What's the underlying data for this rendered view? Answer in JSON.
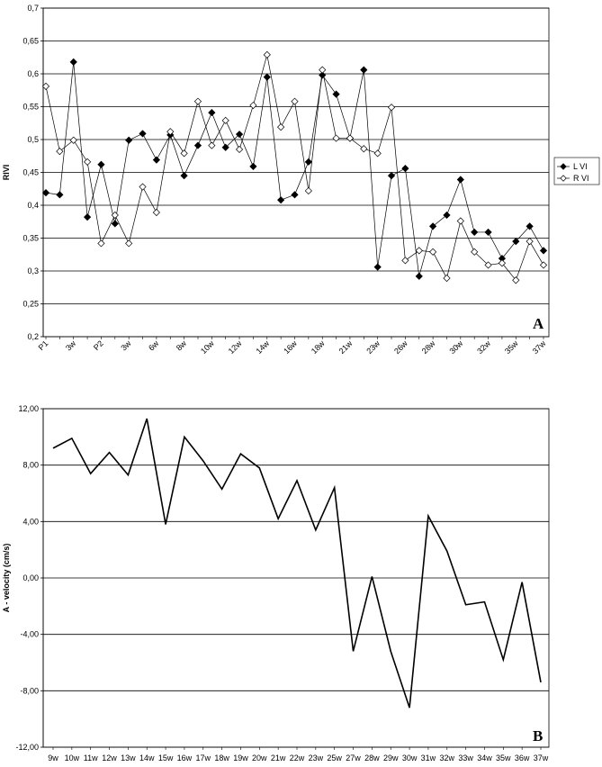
{
  "chart_data": [
    {
      "type": "line",
      "panel_label": "A",
      "ylabel": "RIVI",
      "ylim": [
        0.2,
        0.7
      ],
      "yticks": [
        "0,2",
        "0,25",
        "0,3",
        "0,35",
        "0,4",
        "0,45",
        "0,5",
        "0,55",
        "0,6",
        "0,65",
        "0,7"
      ],
      "grid": true,
      "legend_position": "right",
      "x_tick_labels": [
        "P1",
        "3w",
        "P2",
        "3w",
        "6w",
        "8w",
        "10w",
        "12w",
        "14w",
        "16w",
        "18w",
        "21w",
        "23w",
        "26w",
        "28w",
        "30w",
        "32w",
        "35w",
        "37w"
      ],
      "series": [
        {
          "name": "L VI",
          "marker": "filled-diamond",
          "values": [
            0.419,
            0.416,
            0.618,
            0.382,
            0.462,
            0.372,
            0.499,
            0.509,
            0.469,
            0.507,
            0.445,
            0.491,
            0.541,
            0.488,
            0.508,
            0.459,
            0.595,
            0.408,
            0.416,
            0.466,
            0.598,
            0.569,
            0.502,
            0.606,
            0.306,
            0.445,
            0.456,
            0.292,
            0.368,
            0.385,
            0.439,
            0.359,
            0.359,
            0.319,
            0.345,
            0.368,
            0.331
          ]
        },
        {
          "name": "R VI",
          "marker": "open-diamond",
          "values": [
            0.581,
            0.482,
            0.499,
            0.466,
            0.342,
            0.385,
            0.342,
            0.428,
            0.389,
            0.512,
            0.479,
            0.558,
            0.491,
            0.529,
            0.485,
            0.552,
            0.629,
            0.519,
            0.558,
            0.422,
            0.606,
            0.502,
            0.502,
            0.486,
            0.479,
            0.549,
            0.316,
            0.331,
            0.329,
            0.289,
            0.376,
            0.329,
            0.309,
            0.312,
            0.286,
            0.345,
            0.309
          ]
        }
      ]
    },
    {
      "type": "line",
      "panel_label": "B",
      "ylabel": "A - velocity (cm/s)",
      "ylim": [
        -12,
        12
      ],
      "yticks": [
        "-12,00",
        "-8,00",
        "-4,00",
        "0,00",
        "4,00",
        "8,00",
        "12,00"
      ],
      "grid": true,
      "categories": [
        "9w",
        "10w",
        "11w",
        "12w",
        "13w",
        "14w",
        "15w",
        "16w",
        "17w",
        "18w",
        "19w",
        "20w",
        "21w",
        "22w",
        "23w",
        "25w",
        "27w",
        "28w",
        "29w",
        "30w",
        "31w",
        "32w",
        "33w",
        "34w",
        "35w",
        "36w",
        "37w"
      ],
      "series": [
        {
          "name": "",
          "values": [
            9.2,
            9.9,
            7.4,
            8.9,
            7.3,
            11.3,
            3.8,
            10.0,
            8.3,
            6.3,
            8.8,
            7.8,
            4.2,
            6.9,
            3.4,
            6.4,
            -5.2,
            0.1,
            -5.2,
            -9.2,
            4.4,
            1.9,
            -1.9,
            -1.7,
            -5.8,
            -0.3,
            -7.4
          ]
        }
      ]
    }
  ]
}
